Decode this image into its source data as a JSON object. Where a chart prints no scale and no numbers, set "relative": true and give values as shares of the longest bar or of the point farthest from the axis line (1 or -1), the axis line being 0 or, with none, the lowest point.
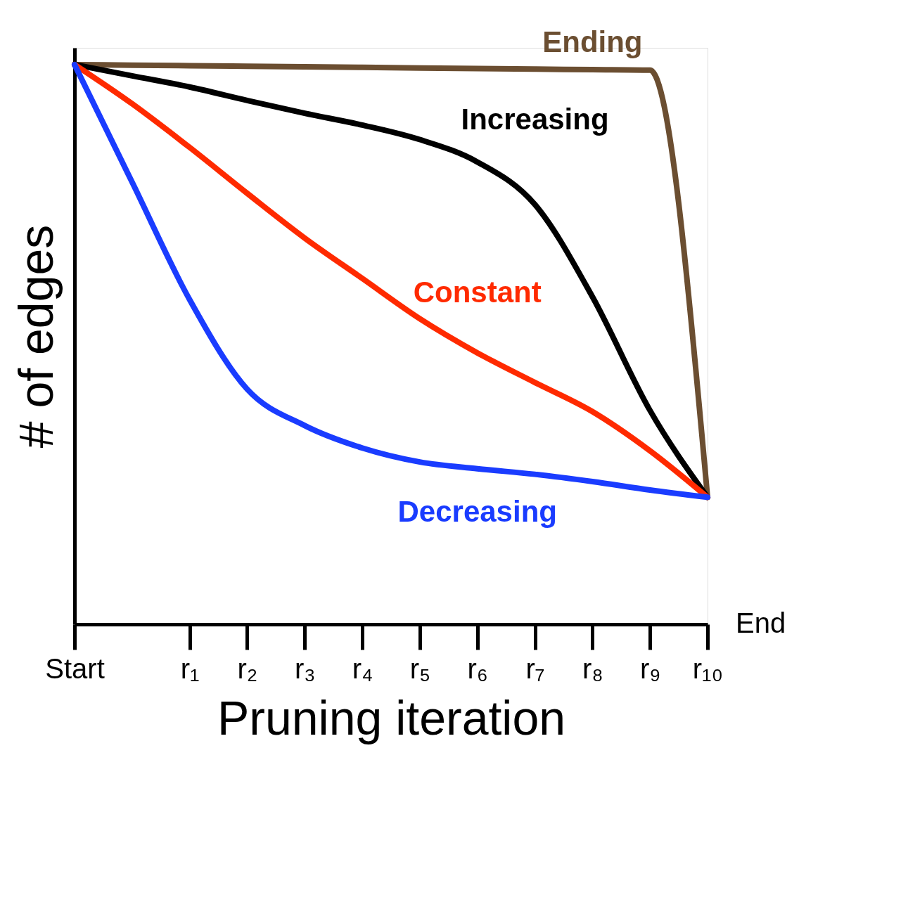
{
  "chart_data": {
    "type": "line",
    "relative": true,
    "xlabel": "Pruning iteration",
    "ylabel": "# of edges",
    "categories": [
      "Start",
      null,
      "r₁",
      "r₂",
      "r₃",
      "r₄",
      "r₅",
      "r₆",
      "r₇",
      "r₈",
      "r₉",
      "r₁₀"
    ],
    "tick_labels": "x",
    "grid": false,
    "legend": false,
    "line_style": "solid",
    "annotations": [
      "End"
    ],
    "series": [
      {
        "name": "Ending",
        "color": "#6b4e31",
        "values": [
          1,
          0.999,
          0.998,
          0.997,
          0.996,
          0.995,
          0.994,
          0.993,
          0.992,
          0.991,
          0.99,
          0.227
        ]
      },
      {
        "name": "Increasing",
        "color": "#000000",
        "values": [
          1,
          0.98,
          0.96,
          0.936,
          0.913,
          0.892,
          0.866,
          0.826,
          0.75,
          0.585,
          0.382,
          0.227
        ]
      },
      {
        "name": "Constant",
        "color": "#ff2a00",
        "values": [
          1,
          0.93,
          0.852,
          0.77,
          0.69,
          0.618,
          0.546,
          0.485,
          0.432,
          0.38,
          0.31,
          0.227
        ]
      },
      {
        "name": "Decreasing",
        "color": "#1a3cff",
        "values": [
          1,
          0.79,
          0.58,
          0.42,
          0.355,
          0.315,
          0.29,
          0.278,
          0.268,
          0.255,
          0.24,
          0.227
        ]
      }
    ]
  }
}
